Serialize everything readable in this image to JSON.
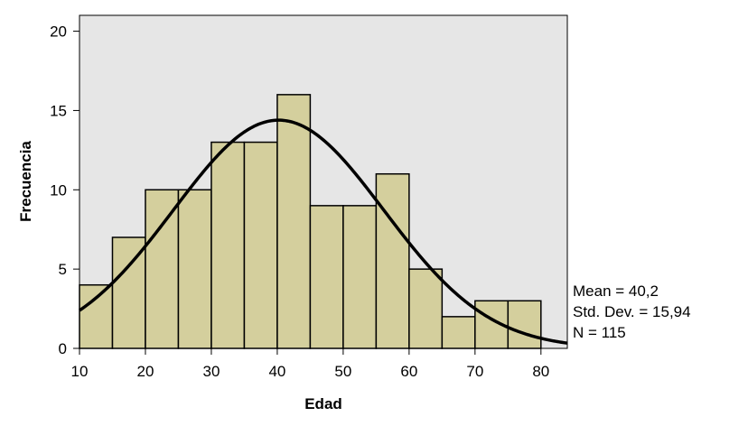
{
  "chart_data": {
    "type": "bar",
    "subtype": "histogram",
    "bin_width": 5,
    "bins": [
      {
        "start": 10,
        "end": 15,
        "value": 4
      },
      {
        "start": 15,
        "end": 20,
        "value": 7
      },
      {
        "start": 20,
        "end": 25,
        "value": 10
      },
      {
        "start": 25,
        "end": 30,
        "value": 10
      },
      {
        "start": 30,
        "end": 35,
        "value": 13
      },
      {
        "start": 35,
        "end": 40,
        "value": 13
      },
      {
        "start": 40,
        "end": 45,
        "value": 16
      },
      {
        "start": 45,
        "end": 50,
        "value": 9
      },
      {
        "start": 50,
        "end": 55,
        "value": 9
      },
      {
        "start": 55,
        "end": 60,
        "value": 11
      },
      {
        "start": 60,
        "end": 65,
        "value": 5
      },
      {
        "start": 65,
        "end": 70,
        "value": 2
      },
      {
        "start": 70,
        "end": 75,
        "value": 3
      },
      {
        "start": 75,
        "end": 80,
        "value": 3
      }
    ],
    "xlabel": "Edad",
    "ylabel": "Frecuencia",
    "xlim": [
      10,
      84
    ],
    "ylim": [
      0,
      21
    ],
    "x_ticks": [
      10,
      20,
      30,
      40,
      50,
      60,
      70,
      80
    ],
    "y_ticks": [
      0,
      5,
      10,
      15,
      20
    ],
    "normal_curve": {
      "mean": 40.2,
      "std_dev": 15.94,
      "n": 115,
      "bin_width": 5
    },
    "grid": false,
    "colors": {
      "plot_background": "#e6e6e6",
      "bar_fill": "#d4cf9d",
      "bar_stroke": "#000000",
      "curve": "#000000"
    }
  },
  "stats": {
    "mean": "Mean = 40,2",
    "std_dev": "Std. Dev. = 15,94",
    "n": "N = 115"
  }
}
